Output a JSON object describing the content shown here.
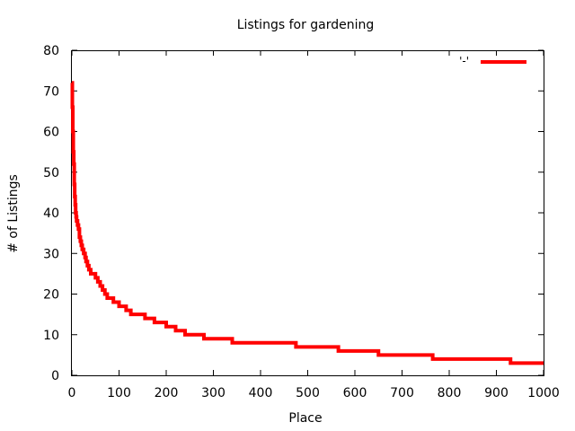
{
  "chart_data": {
    "type": "line",
    "title": "Listings for gardening",
    "xlabel": "Place",
    "ylabel": "# of Listings",
    "xlim": [
      0,
      1000
    ],
    "ylim": [
      0,
      80
    ],
    "xticks": [
      0,
      100,
      200,
      300,
      400,
      500,
      600,
      700,
      800,
      900,
      1000
    ],
    "yticks": [
      0,
      10,
      20,
      30,
      40,
      50,
      60,
      70,
      80
    ],
    "grid": false,
    "legend_position": "top-right",
    "series": [
      {
        "name": "'-'",
        "color": "#ff0000",
        "step": true,
        "x": [
          0,
          1,
          2,
          3,
          4,
          5,
          6,
          7,
          8,
          9,
          10,
          12,
          14,
          16,
          18,
          20,
          22,
          25,
          28,
          30,
          33,
          36,
          40,
          45,
          50,
          55,
          60,
          65,
          70,
          75,
          80,
          88,
          100,
          115,
          125,
          140,
          155,
          175,
          200,
          220,
          240,
          280,
          340,
          475,
          565,
          650,
          765,
          930,
          1000
        ],
        "y": [
          72,
          66,
          60,
          55,
          52,
          47,
          44,
          42,
          40,
          39,
          38,
          37,
          36,
          34,
          33,
          32,
          31,
          30,
          29,
          28,
          27,
          26,
          25,
          25,
          24,
          23,
          22,
          21,
          20,
          19,
          19,
          18,
          17,
          16,
          15,
          15,
          14,
          13,
          12,
          11,
          10,
          9,
          8,
          7,
          6,
          5,
          4,
          3,
          3
        ]
      }
    ]
  }
}
